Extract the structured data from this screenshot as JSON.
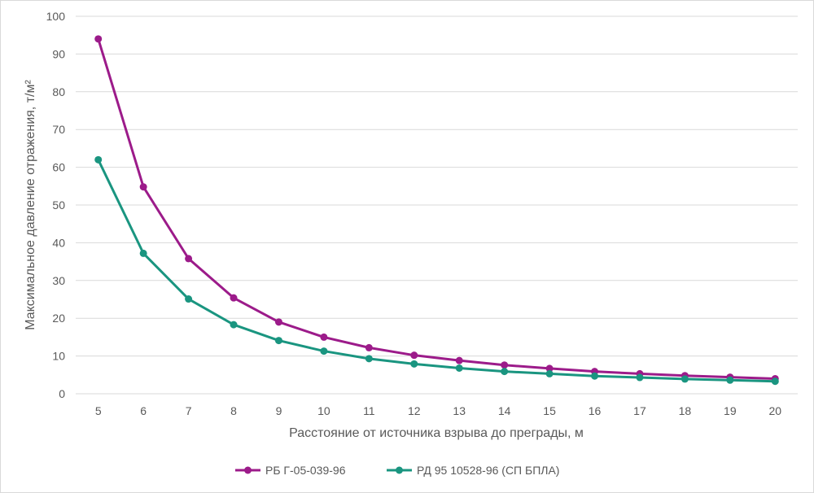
{
  "chart_data": {
    "type": "line",
    "title": "",
    "xlabel": "Расстояние от источника взрыва до преграды, м",
    "ylabel": "Максимальное давление отражения, т/м²",
    "x": [
      5,
      6,
      7,
      8,
      9,
      10,
      11,
      12,
      13,
      14,
      15,
      16,
      17,
      18,
      19,
      20
    ],
    "ylim": [
      0,
      100
    ],
    "yticks": [
      0,
      10,
      20,
      30,
      40,
      50,
      60,
      70,
      80,
      90,
      100
    ],
    "grid": true,
    "legend": "bottom",
    "series": [
      {
        "name": "РБ Г-05-039-96",
        "color": "#9c1b8a",
        "values": [
          94,
          54.8,
          35.8,
          25.4,
          19,
          15,
          12.2,
          10.2,
          8.8,
          7.6,
          6.7,
          5.9,
          5.3,
          4.8,
          4.4,
          4.0
        ]
      },
      {
        "name": "РД 95 10528-96 (СП БПЛА)",
        "color": "#1a9580",
        "values": [
          62,
          37.2,
          25.1,
          18.3,
          14.1,
          11.3,
          9.3,
          7.9,
          6.8,
          5.9,
          5.3,
          4.7,
          4.3,
          3.9,
          3.6,
          3.3
        ]
      }
    ]
  }
}
